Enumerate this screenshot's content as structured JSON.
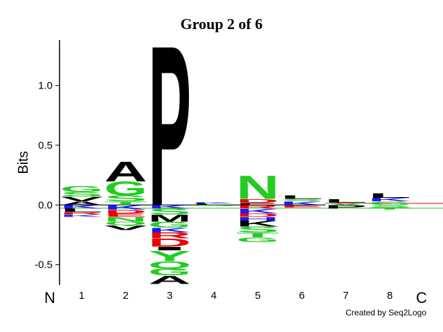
{
  "chart_data": {
    "type": "logo",
    "title": "Group 2 of 6",
    "y_label": "Bits",
    "start_label": "N",
    "end_label": "C",
    "credit": "Created by Seq2Logo",
    "categories": [
      "1",
      "2",
      "3",
      "4",
      "5",
      "6",
      "7",
      "8"
    ],
    "ylim": [
      -0.67,
      1.38
    ],
    "yticks": [
      {
        "value": -0.5,
        "label": "-0.5"
      },
      {
        "value": 0,
        "label": "0.0"
      },
      {
        "value": 0.5,
        "label": "0.5"
      },
      {
        "value": 1,
        "label": "1.0"
      }
    ],
    "stacks": [
      [
        {
          "letter": "A",
          "color": "#000000",
          "value": 0.03
        },
        {
          "letter": "V",
          "color": "#000000",
          "value": 0.04
        },
        {
          "letter": "S",
          "color": "#22cc22",
          "value": 0.04
        },
        {
          "letter": "G",
          "color": "#22cc22",
          "value": 0.05
        },
        {
          "letter": "K",
          "color": "#1a1aff",
          "value": -0.03
        },
        {
          "letter": "L",
          "color": "#000000",
          "value": -0.03
        },
        {
          "letter": "R",
          "color": "#ee0000",
          "value": -0.02
        },
        {
          "letter": "K",
          "color": "#1a1aff",
          "value": -0.02
        }
      ],
      [
        {
          "letter": "T",
          "color": "#22cc22",
          "value": 0.03
        },
        {
          "letter": "S",
          "color": "#22cc22",
          "value": 0.05
        },
        {
          "letter": "G",
          "color": "#22cc22",
          "value": 0.12
        },
        {
          "letter": "A",
          "color": "#000000",
          "value": 0.17
        },
        {
          "letter": "K",
          "color": "#1a1aff",
          "value": -0.04
        },
        {
          "letter": "D",
          "color": "#ee0000",
          "value": -0.03
        },
        {
          "letter": "E",
          "color": "#ee0000",
          "value": -0.03
        },
        {
          "letter": "N",
          "color": "#22cc22",
          "value": -0.04
        },
        {
          "letter": "Q",
          "color": "#22cc22",
          "value": -0.03
        },
        {
          "letter": "V",
          "color": "#000000",
          "value": -0.04
        }
      ],
      [
        {
          "letter": "P",
          "color": "#000000",
          "value": 1.38
        },
        {
          "letter": "K",
          "color": "#1a1aff",
          "value": -0.03
        },
        {
          "letter": "S",
          "color": "#22cc22",
          "value": -0.05
        },
        {
          "letter": "M",
          "color": "#000000",
          "value": -0.06
        },
        {
          "letter": "G",
          "color": "#22cc22",
          "value": -0.05
        },
        {
          "letter": "K",
          "color": "#1a1aff",
          "value": -0.04
        },
        {
          "letter": "R",
          "color": "#ee0000",
          "value": -0.05
        },
        {
          "letter": "D",
          "color": "#ee0000",
          "value": -0.07
        },
        {
          "letter": "I",
          "color": "#000000",
          "value": -0.03
        },
        {
          "letter": "Y",
          "color": "#22cc22",
          "value": -0.09
        },
        {
          "letter": "Q",
          "color": "#22cc22",
          "value": -0.06
        },
        {
          "letter": "G",
          "color": "#22cc22",
          "value": -0.06
        },
        {
          "letter": "A",
          "color": "#000000",
          "value": -0.07
        }
      ],
      [
        {
          "letter": "L",
          "color": "#000000",
          "value": 0.01
        },
        {
          "letter": "K",
          "color": "#1a1aff",
          "value": 0.01
        },
        {
          "letter": "S",
          "color": "#22cc22",
          "value": -0.01
        }
      ],
      [
        {
          "letter": "E",
          "color": "#000000",
          "value": 0.02
        },
        {
          "letter": "D",
          "color": "#ee0000",
          "value": 0.03
        },
        {
          "letter": "N",
          "color": "#22cc22",
          "value": 0.2
        },
        {
          "letter": "R",
          "color": "#ee0000",
          "value": -0.03
        },
        {
          "letter": "K",
          "color": "#1a1aff",
          "value": -0.04
        },
        {
          "letter": "D",
          "color": "#ee0000",
          "value": -0.03
        },
        {
          "letter": "H",
          "color": "#1a1aff",
          "value": -0.03
        },
        {
          "letter": "K",
          "color": "#000000",
          "value": -0.05
        },
        {
          "letter": "S",
          "color": "#22cc22",
          "value": -0.05
        },
        {
          "letter": "T",
          "color": "#22cc22",
          "value": -0.04
        },
        {
          "letter": "G",
          "color": "#22cc22",
          "value": -0.04
        }
      ],
      [
        {
          "letter": "K",
          "color": "#1a1aff",
          "value": 0.03
        },
        {
          "letter": "S",
          "color": "#22cc22",
          "value": 0.02
        },
        {
          "letter": "L",
          "color": "#000000",
          "value": 0.03
        },
        {
          "letter": "E",
          "color": "#ee0000",
          "value": -0.02
        }
      ],
      [
        {
          "letter": "V",
          "color": "#22cc22",
          "value": 0.02
        },
        {
          "letter": "L",
          "color": "#000000",
          "value": 0.03
        },
        {
          "letter": "P",
          "color": "#000000",
          "value": -0.03
        }
      ],
      [
        {
          "letter": "G",
          "color": "#22cc22",
          "value": 0.03
        },
        {
          "letter": "K",
          "color": "#1a1aff",
          "value": 0.03
        },
        {
          "letter": "L",
          "color": "#000000",
          "value": 0.04
        },
        {
          "letter": "S",
          "color": "#22cc22",
          "value": -0.02
        },
        {
          "letter": "T",
          "color": "#22cc22",
          "value": -0.02
        }
      ]
    ]
  }
}
